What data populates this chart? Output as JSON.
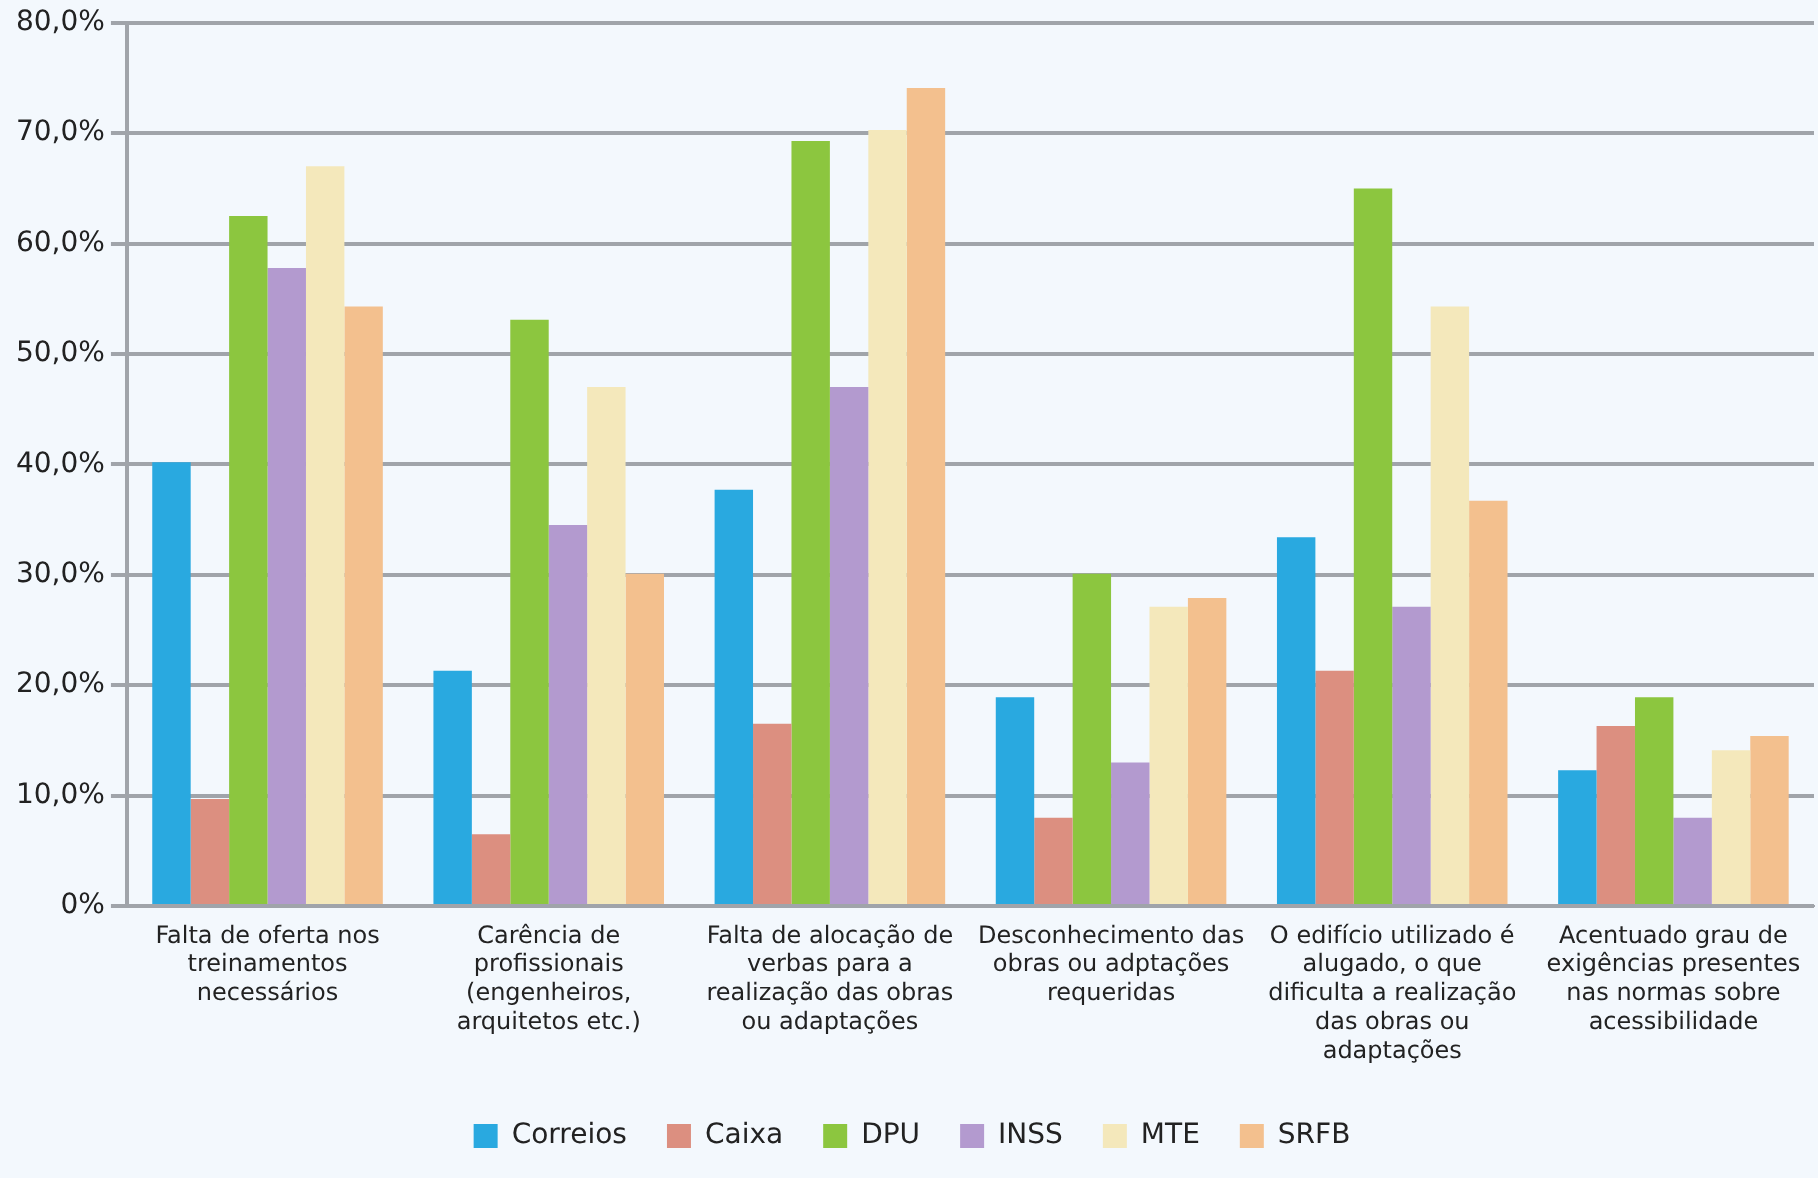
{
  "chart_data": {
    "type": "bar",
    "categories": [
      "Falta de oferta nos treinamentos necessários",
      "Carência de profissionais (engenheiros, arquitetos etc.)",
      "Falta de alocação de verbas para a realização das obras ou adaptações",
      "Desconhecimento das obras ou adptações requeridas",
      "O edifício utilizado é alugado, o que dificulta a realização das obras ou adaptações",
      "Acentuado grau de exigências presentes nas normas sobre acessibilidade"
    ],
    "series": [
      {
        "name": "Correios",
        "color": "#29a9e0",
        "values": [
          40.2,
          21.3,
          37.7,
          18.9,
          33.4,
          12.3
        ]
      },
      {
        "name": "Caixa",
        "color": "#dc8f80",
        "values": [
          9.7,
          6.5,
          16.5,
          8,
          21.3,
          16.3
        ]
      },
      {
        "name": "DPU",
        "color": "#8cc63f",
        "values": [
          62.5,
          53.1,
          69.3,
          30.1,
          65,
          18.9
        ]
      },
      {
        "name": "INSS",
        "color": "#b39acf",
        "values": [
          57.8,
          34.5,
          47,
          13,
          27.1,
          8
        ]
      },
      {
        "name": "MTE",
        "color": "#f4e8bb",
        "values": [
          67,
          47,
          70.3,
          27.1,
          54.3,
          14.1
        ]
      },
      {
        "name": "SRFB",
        "color": "#f3c08e",
        "values": [
          54.3,
          30.1,
          74.1,
          27.9,
          36.7,
          15.4
        ]
      }
    ],
    "ylim": [
      0,
      80
    ],
    "yticks": [
      {
        "value": 0,
        "label": "0%"
      },
      {
        "value": 10,
        "label": "10,0%"
      },
      {
        "value": 20,
        "label": "20,0%"
      },
      {
        "value": 30,
        "label": "30,0%"
      },
      {
        "value": 40,
        "label": "40,0%"
      },
      {
        "value": 50,
        "label": "50,0%"
      },
      {
        "value": 60,
        "label": "60,0%"
      },
      {
        "value": 70,
        "label": "70,0%"
      },
      {
        "value": 80,
        "label": "80,0%"
      }
    ],
    "grid": "y",
    "legend": "bottom"
  }
}
